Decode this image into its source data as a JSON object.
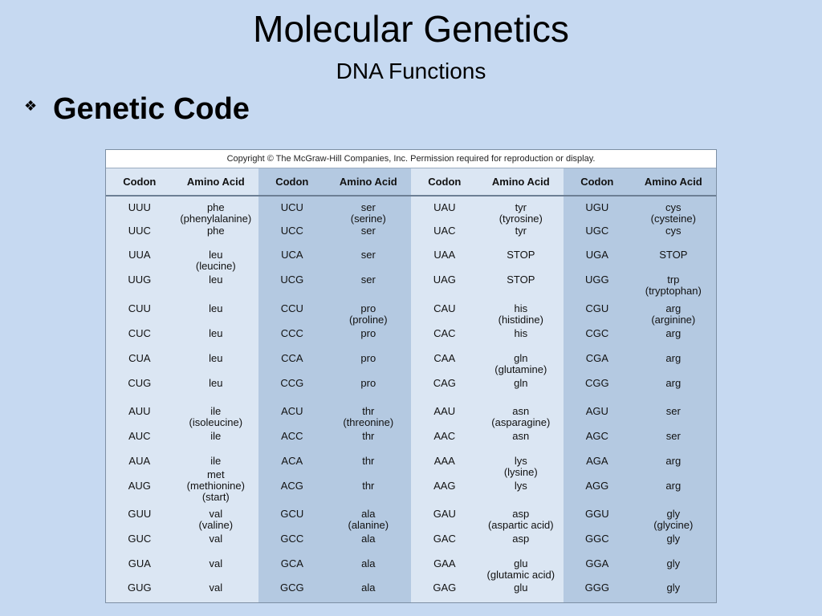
{
  "title": "Molecular Genetics",
  "subtitle": "DNA Functions",
  "bullet_heading": "Genetic Code",
  "copyright": "Copyright © The McGraw-Hill Companies, Inc. Permission required for reproduction or display.",
  "headers": {
    "codon": "Codon",
    "amino_acid": "Amino Acid"
  },
  "groups": [
    {
      "shade": "light",
      "rows": [
        {
          "codon": "UUU",
          "aa": "phe\n(phenylalanine)"
        },
        {
          "codon": "UUC",
          "aa": "phe"
        },
        {
          "codon": "UUA",
          "aa": "leu\n(leucine)"
        },
        {
          "codon": "UUG",
          "aa": "leu"
        },
        {
          "codon": "CUU",
          "aa": "leu"
        },
        {
          "codon": "CUC",
          "aa": "leu"
        },
        {
          "codon": "CUA",
          "aa": "leu"
        },
        {
          "codon": "CUG",
          "aa": "leu"
        },
        {
          "codon": "AUU",
          "aa": "ile\n(isoleucine)"
        },
        {
          "codon": "AUC",
          "aa": "ile"
        },
        {
          "codon": "AUA",
          "aa": "ile"
        },
        {
          "codon": "AUG",
          "aa": "met\n(methionine)\n(start)"
        },
        {
          "codon": "GUU",
          "aa": "val\n(valine)"
        },
        {
          "codon": "GUC",
          "aa": "val"
        },
        {
          "codon": "GUA",
          "aa": "val"
        },
        {
          "codon": "GUG",
          "aa": "val"
        }
      ]
    },
    {
      "shade": "dark",
      "rows": [
        {
          "codon": "UCU",
          "aa": "ser\n(serine)"
        },
        {
          "codon": "UCC",
          "aa": "ser"
        },
        {
          "codon": "UCA",
          "aa": "ser"
        },
        {
          "codon": "UCG",
          "aa": "ser"
        },
        {
          "codon": "CCU",
          "aa": "pro\n(proline)"
        },
        {
          "codon": "CCC",
          "aa": "pro"
        },
        {
          "codon": "CCA",
          "aa": "pro"
        },
        {
          "codon": "CCG",
          "aa": "pro"
        },
        {
          "codon": "ACU",
          "aa": "thr\n(threonine)"
        },
        {
          "codon": "ACC",
          "aa": "thr"
        },
        {
          "codon": "ACA",
          "aa": "thr"
        },
        {
          "codon": "ACG",
          "aa": "thr"
        },
        {
          "codon": "GCU",
          "aa": "ala\n(alanine)"
        },
        {
          "codon": "GCC",
          "aa": "ala"
        },
        {
          "codon": "GCA",
          "aa": "ala"
        },
        {
          "codon": "GCG",
          "aa": "ala"
        }
      ]
    },
    {
      "shade": "light",
      "rows": [
        {
          "codon": "UAU",
          "aa": "tyr\n(tyrosine)"
        },
        {
          "codon": "UAC",
          "aa": "tyr"
        },
        {
          "codon": "UAA",
          "aa": "STOP"
        },
        {
          "codon": "UAG",
          "aa": "STOP"
        },
        {
          "codon": "CAU",
          "aa": "his\n(histidine)"
        },
        {
          "codon": "CAC",
          "aa": "his"
        },
        {
          "codon": "CAA",
          "aa": "gln\n(glutamine)"
        },
        {
          "codon": "CAG",
          "aa": "gln"
        },
        {
          "codon": "AAU",
          "aa": "asn\n(asparagine)"
        },
        {
          "codon": "AAC",
          "aa": "asn"
        },
        {
          "codon": "AAA",
          "aa": "lys\n(lysine)"
        },
        {
          "codon": "AAG",
          "aa": "lys"
        },
        {
          "codon": "GAU",
          "aa": "asp\n(aspartic acid)"
        },
        {
          "codon": "GAC",
          "aa": "asp"
        },
        {
          "codon": "GAA",
          "aa": "glu\n(glutamic acid)"
        },
        {
          "codon": "GAG",
          "aa": "glu"
        }
      ]
    },
    {
      "shade": "dark",
      "rows": [
        {
          "codon": "UGU",
          "aa": "cys\n(cysteine)"
        },
        {
          "codon": "UGC",
          "aa": "cys"
        },
        {
          "codon": "UGA",
          "aa": "STOP"
        },
        {
          "codon": "UGG",
          "aa": "trp\n(tryptophan)"
        },
        {
          "codon": "CGU",
          "aa": "arg\n(arginine)"
        },
        {
          "codon": "CGC",
          "aa": "arg"
        },
        {
          "codon": "CGA",
          "aa": "arg"
        },
        {
          "codon": "CGG",
          "aa": "arg"
        },
        {
          "codon": "AGU",
          "aa": "ser"
        },
        {
          "codon": "AGC",
          "aa": "ser"
        },
        {
          "codon": "AGA",
          "aa": "arg"
        },
        {
          "codon": "AGG",
          "aa": "arg"
        },
        {
          "codon": "GGU",
          "aa": "gly\n(glycine)"
        },
        {
          "codon": "GGC",
          "aa": "gly"
        },
        {
          "codon": "GGA",
          "aa": "gly"
        },
        {
          "codon": "GGG",
          "aa": "gly"
        }
      ]
    }
  ]
}
